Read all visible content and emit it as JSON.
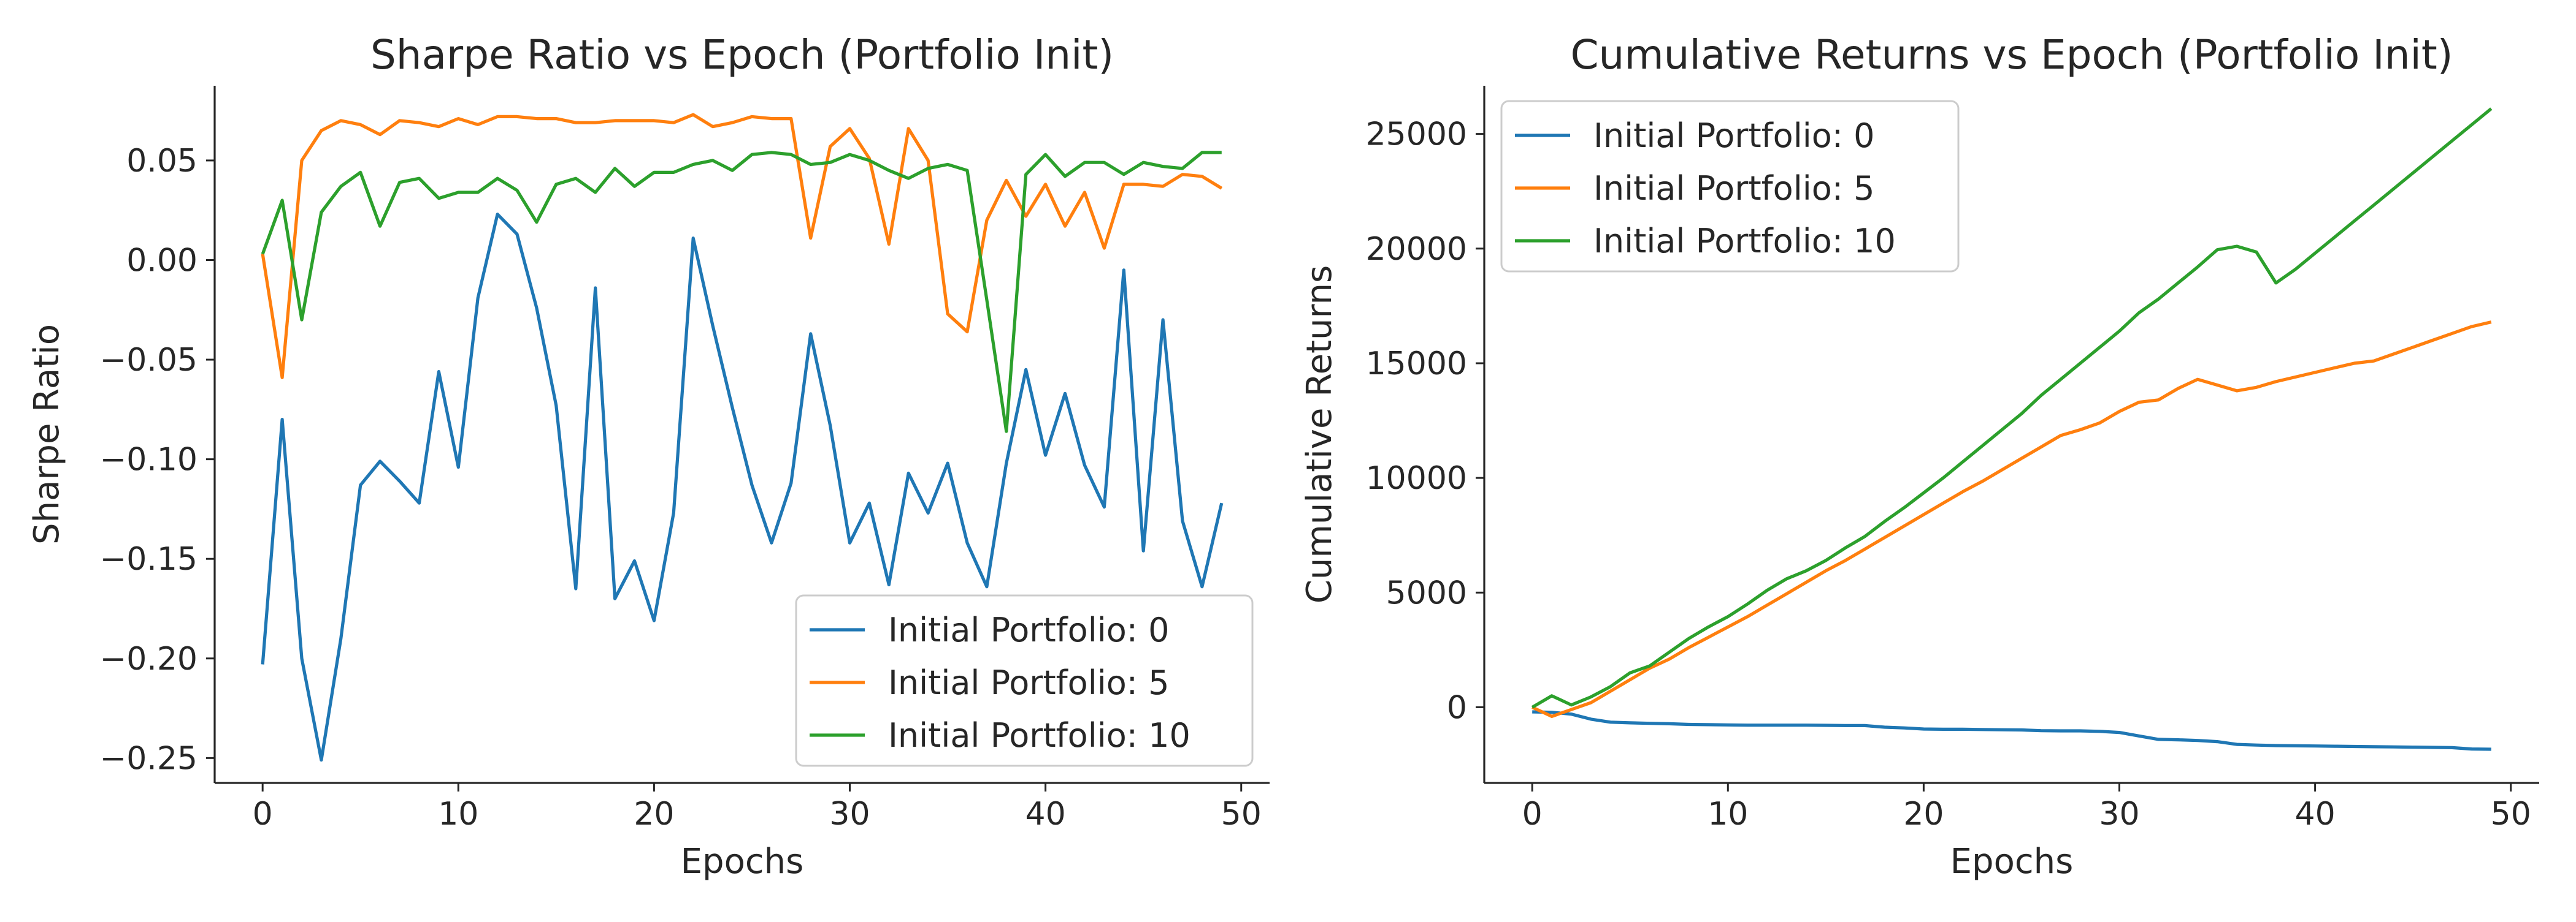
{
  "chart_data": [
    {
      "type": "line",
      "title": "Sharpe Ratio vs Epoch (Portfolio Init)",
      "xlabel": "Epochs",
      "ylabel": "Sharpe Ratio",
      "xlim": [
        -2.45,
        51.45
      ],
      "ylim": [
        -0.2625,
        0.0875
      ],
      "xticks": [
        0,
        10,
        20,
        30,
        40,
        50
      ],
      "xtick_labels": [
        "0",
        "10",
        "20",
        "30",
        "40",
        "50"
      ],
      "yticks": [
        -0.25,
        -0.2,
        -0.15,
        -0.1,
        -0.05,
        0.0,
        0.05
      ],
      "ytick_labels": [
        "−0.25",
        "−0.20",
        "−0.15",
        "−0.10",
        "−0.05",
        "0.00",
        "0.05"
      ],
      "grid": false,
      "legend_position": "lower-right",
      "x": [
        0,
        1,
        2,
        3,
        4,
        5,
        6,
        7,
        8,
        9,
        10,
        11,
        12,
        13,
        14,
        15,
        16,
        17,
        18,
        19,
        20,
        21,
        22,
        23,
        24,
        25,
        26,
        27,
        28,
        29,
        30,
        31,
        32,
        33,
        34,
        35,
        36,
        37,
        38,
        39,
        40,
        41,
        42,
        43,
        44,
        45,
        46,
        47,
        48,
        49
      ],
      "series": [
        {
          "name": "Initial Portfolio: 0",
          "color": "#1f77b4",
          "values": [
            -0.203,
            -0.08,
            -0.2,
            -0.251,
            -0.19,
            -0.113,
            -0.101,
            -0.111,
            -0.122,
            -0.056,
            -0.104,
            -0.019,
            0.023,
            0.013,
            -0.024,
            -0.073,
            -0.165,
            -0.014,
            -0.17,
            -0.151,
            -0.181,
            -0.127,
            0.011,
            -0.033,
            -0.074,
            -0.113,
            -0.142,
            -0.112,
            -0.037,
            -0.083,
            -0.142,
            -0.122,
            -0.163,
            -0.107,
            -0.127,
            -0.102,
            -0.142,
            -0.164,
            -0.102,
            -0.055,
            -0.098,
            -0.067,
            -0.103,
            -0.124,
            -0.005,
            -0.146,
            -0.03,
            -0.131,
            -0.164,
            -0.122
          ]
        },
        {
          "name": "Initial Portfolio: 5",
          "color": "#ff7f0e",
          "values": [
            0.003,
            -0.059,
            0.05,
            0.065,
            0.07,
            0.068,
            0.063,
            0.07,
            0.069,
            0.067,
            0.071,
            0.068,
            0.072,
            0.072,
            0.071,
            0.071,
            0.069,
            0.069,
            0.07,
            0.07,
            0.07,
            0.069,
            0.073,
            0.067,
            0.069,
            0.072,
            0.071,
            0.071,
            0.011,
            0.057,
            0.066,
            0.051,
            0.008,
            0.066,
            0.05,
            -0.027,
            -0.036,
            0.02,
            0.04,
            0.022,
            0.038,
            0.017,
            0.034,
            0.006,
            0.038,
            0.038,
            0.037,
            0.043,
            0.042,
            0.036
          ]
        },
        {
          "name": "Initial Portfolio: 10",
          "color": "#2ca02c",
          "values": [
            0.003,
            0.03,
            -0.03,
            0.024,
            0.037,
            0.044,
            0.017,
            0.039,
            0.041,
            0.031,
            0.034,
            0.034,
            0.041,
            0.035,
            0.019,
            0.038,
            0.041,
            0.034,
            0.046,
            0.037,
            0.044,
            0.044,
            0.048,
            0.05,
            0.045,
            0.053,
            0.054,
            0.053,
            0.048,
            0.049,
            0.053,
            0.05,
            0.045,
            0.041,
            0.046,
            0.048,
            0.045,
            -0.02,
            -0.086,
            0.043,
            0.053,
            0.042,
            0.049,
            0.049,
            0.043,
            0.049,
            0.047,
            0.046,
            0.054,
            0.054
          ]
        }
      ]
    },
    {
      "type": "line",
      "title": "Cumulative Returns vs Epoch (Portfolio Init)",
      "xlabel": "Epochs",
      "ylabel": "Cumulative Returns",
      "xlim": [
        -2.45,
        51.45
      ],
      "ylim": [
        -3300,
        27100
      ],
      "xticks": [
        0,
        10,
        20,
        30,
        40,
        50
      ],
      "xtick_labels": [
        "0",
        "10",
        "20",
        "30",
        "40",
        "50"
      ],
      "yticks": [
        0,
        5000,
        10000,
        15000,
        20000,
        25000
      ],
      "ytick_labels": [
        "0",
        "5000",
        "10000",
        "15000",
        "20000",
        "25000"
      ],
      "grid": false,
      "legend_position": "upper-left",
      "x": [
        0,
        1,
        2,
        3,
        4,
        5,
        6,
        7,
        8,
        9,
        10,
        11,
        12,
        13,
        14,
        15,
        16,
        17,
        18,
        19,
        20,
        21,
        22,
        23,
        24,
        25,
        26,
        27,
        28,
        29,
        30,
        31,
        32,
        33,
        34,
        35,
        36,
        37,
        38,
        39,
        40,
        41,
        42,
        43,
        44,
        45,
        46,
        47,
        48,
        49
      ],
      "series": [
        {
          "name": "Initial Portfolio: 0",
          "color": "#1f77b4",
          "values": [
            -200,
            -220,
            -300,
            -520,
            -650,
            -680,
            -700,
            -720,
            -750,
            -760,
            -770,
            -780,
            -780,
            -780,
            -780,
            -790,
            -800,
            -800,
            -870,
            -900,
            -950,
            -960,
            -960,
            -970,
            -980,
            -990,
            -1020,
            -1030,
            -1030,
            -1050,
            -1100,
            -1250,
            -1400,
            -1420,
            -1450,
            -1500,
            -1620,
            -1650,
            -1670,
            -1680,
            -1690,
            -1700,
            -1710,
            -1720,
            -1730,
            -1740,
            -1750,
            -1760,
            -1820,
            -1830
          ]
        },
        {
          "name": "Initial Portfolio: 5",
          "color": "#ff7f0e",
          "values": [
            0,
            -400,
            -100,
            200,
            700,
            1200,
            1700,
            2100,
            2600,
            3050,
            3500,
            3950,
            4450,
            4950,
            5450,
            5950,
            6400,
            6900,
            7400,
            7900,
            8400,
            8900,
            9400,
            9850,
            10350,
            10850,
            11350,
            11850,
            12100,
            12400,
            12900,
            13300,
            13400,
            13900,
            14300,
            14050,
            13800,
            13950,
            14200,
            14400,
            14600,
            14800,
            15000,
            15100,
            15400,
            15700,
            16000,
            16300,
            16600,
            16800
          ]
        },
        {
          "name": "Initial Portfolio: 10",
          "color": "#2ca02c",
          "values": [
            0,
            500,
            100,
            450,
            900,
            1500,
            1800,
            2400,
            3000,
            3500,
            3950,
            4500,
            5100,
            5600,
            5950,
            6400,
            6950,
            7450,
            8100,
            8700,
            9350,
            10000,
            10700,
            11400,
            12100,
            12800,
            13600,
            14300,
            15000,
            15700,
            16400,
            17200,
            17800,
            18500,
            19200,
            19950,
            20100,
            19850,
            18500,
            19100,
            19800,
            20500,
            21200,
            21900,
            22600,
            23300,
            24000,
            24700,
            25400,
            26100
          ]
        }
      ]
    }
  ]
}
